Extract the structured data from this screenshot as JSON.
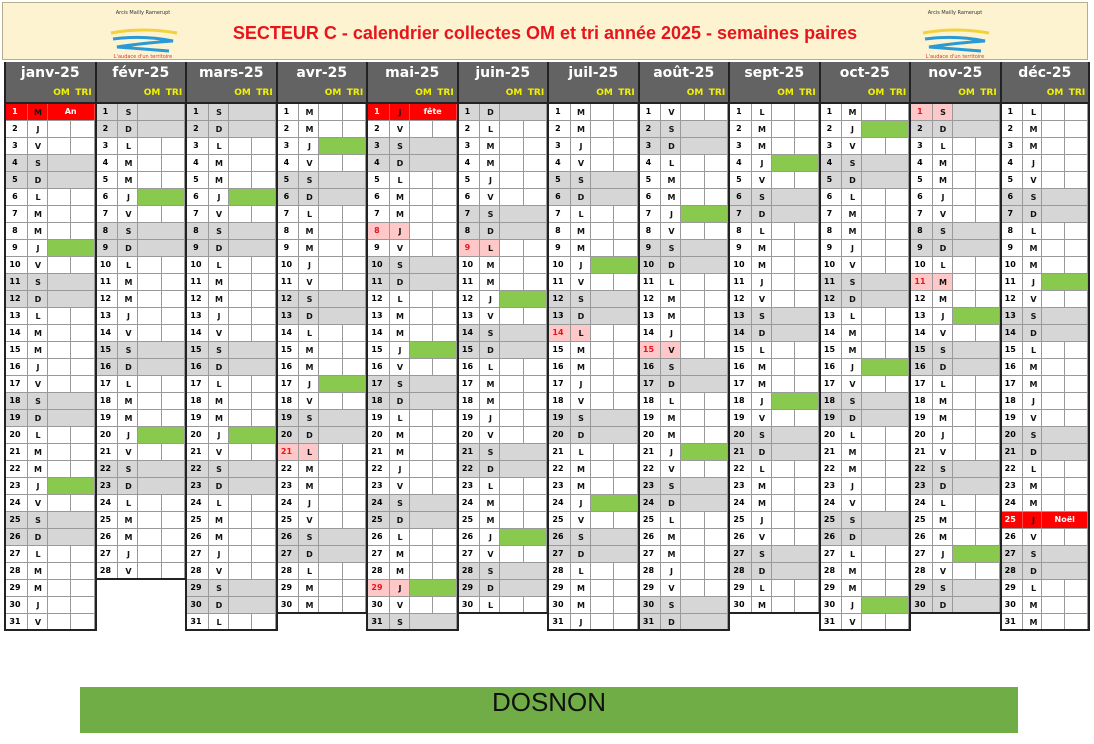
{
  "title": "SECTEUR C - calendrier collectes OM et tri année 2025 - semaines paires",
  "logo_text": [
    "Arcis Mailly Ramerupt",
    "L'audace d'un territoire"
  ],
  "col_om": "OM",
  "col_tri": "TRI",
  "footer": "DOSNON",
  "colors": {
    "collection": "#88c94e",
    "weekend": "#d6d6d6",
    "holiday": "#ffc8c8",
    "special": "#ff0000",
    "footer": "#70ad47",
    "header": "#636363"
  },
  "months": [
    {
      "label": "janv-25",
      "letters": "MJVSDLMMJVSDLMMJVSDLMMJVSDLMMJV",
      "green": [
        9,
        23
      ],
      "holidays": [],
      "special": {
        "1": "An"
      }
    },
    {
      "label": "févr-25",
      "letters": "SDLMMJVSDLMMJVSDLMMJVSDLMMJV",
      "green": [
        6,
        20
      ],
      "holidays": [],
      "special": {}
    },
    {
      "label": "mars-25",
      "letters": "SDLMMJVSDLMMJVSDLMMJVSDLMMJVSDL",
      "green": [
        6,
        20
      ],
      "holidays": [],
      "special": {}
    },
    {
      "label": "avr-25",
      "letters": "MMJVSDLMMJVSDLMMJVSDLMMJVSDLMM",
      "green": [
        3,
        17
      ],
      "holidays": [
        21
      ],
      "special": {}
    },
    {
      "label": "mai-25",
      "letters": "JVSDLMMJVSDLMMJVSDLMMJVSDLMMJVS",
      "green": [
        3,
        15,
        29
      ],
      "holidays": [
        8,
        29
      ],
      "special": {
        "1": "fête travail"
      }
    },
    {
      "label": "juin-25",
      "letters": "DLMMJVSDLMMJVSDLMMJVSDLMMJVSDL",
      "green": [
        12,
        26
      ],
      "holidays": [
        9
      ],
      "special": {}
    },
    {
      "label": "juil-25",
      "letters": "MMJVSDLMMJVSDLMMJVSDLMMJVSDLMMJ",
      "green": [
        10,
        24
      ],
      "holidays": [
        14
      ],
      "special": {}
    },
    {
      "label": "août-25",
      "letters": "VSDLMMJVSDLMMJVSDLMMJVSDLMMJVSD",
      "green": [
        7,
        21
      ],
      "holidays": [
        15
      ],
      "special": {}
    },
    {
      "label": "sept-25",
      "letters": "LMMJVSDLMMJVSDLMMJVSDLMMJVSDLM",
      "green": [
        4,
        18
      ],
      "holidays": [],
      "special": {}
    },
    {
      "label": "oct-25",
      "letters": "MJVSDLMMJVSDLMMJVSDLMMJVSDLMMJV",
      "green": [
        2,
        16,
        30
      ],
      "holidays": [],
      "special": {}
    },
    {
      "label": "nov-25",
      "letters": "SDLMMJVSDLMMJVSDLMMJVSDLMMJVSD",
      "green": [
        13,
        27
      ],
      "holidays": [
        1,
        11
      ],
      "special": {}
    },
    {
      "label": "déc-25",
      "letters": "LMMJVSDLMMJVSDLMMJVSDLMMJVSDLMM",
      "green": [
        11,
        27
      ],
      "holidays": [],
      "special": {
        "25": "Noël"
      }
    }
  ]
}
